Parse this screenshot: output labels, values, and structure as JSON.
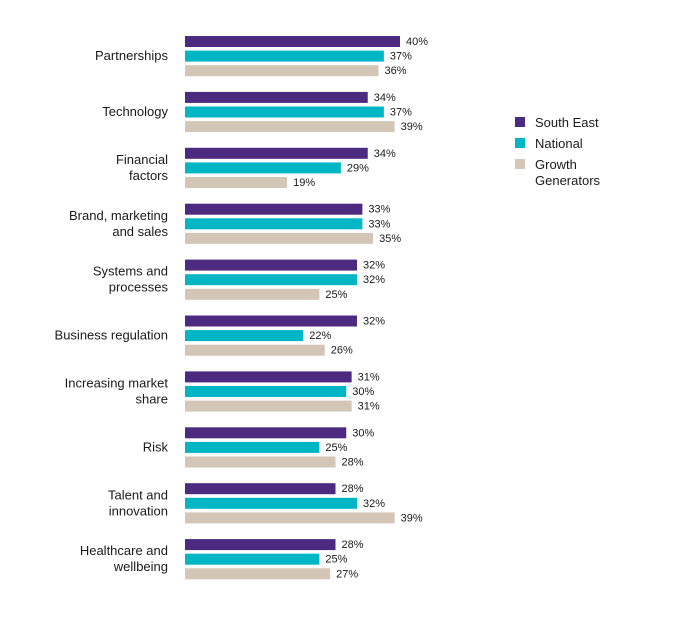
{
  "chart_data": {
    "type": "bar",
    "orientation": "horizontal",
    "categories": [
      "Partnerships",
      "Technology",
      "Financial factors",
      "Brand, marketing and sales",
      "Systems and processes",
      "Business regulation",
      "Increasing market share",
      "Risk",
      "Talent and innovation",
      "Healthcare and wellbeing"
    ],
    "category_lines": [
      [
        "Partnerships"
      ],
      [
        "Technology"
      ],
      [
        "Financial",
        "factors"
      ],
      [
        "Brand, marketing",
        "and sales"
      ],
      [
        "Systems and",
        "processes"
      ],
      [
        "Business regulation"
      ],
      [
        "Increasing market",
        "share"
      ],
      [
        "Risk"
      ],
      [
        "Talent and",
        "innovation"
      ],
      [
        "Healthcare and",
        "wellbeing"
      ]
    ],
    "series": [
      {
        "name": "South East",
        "color": "#4b2a7f",
        "values": [
          40,
          34,
          34,
          33,
          32,
          32,
          31,
          30,
          28,
          28
        ]
      },
      {
        "name": "National",
        "color": "#00b5c4",
        "values": [
          37,
          37,
          29,
          33,
          32,
          22,
          30,
          25,
          32,
          25
        ]
      },
      {
        "name": "Growth Generators",
        "color": "#d3c6b7",
        "values": [
          36,
          39,
          19,
          35,
          25,
          26,
          31,
          28,
          39,
          27
        ]
      }
    ],
    "legend_lines": [
      [
        "South East"
      ],
      [
        "National"
      ],
      [
        "Growth",
        "Generators"
      ]
    ],
    "value_suffix": "%",
    "xlim": [
      0,
      40
    ],
    "legend_position": "right",
    "grid": false
  }
}
